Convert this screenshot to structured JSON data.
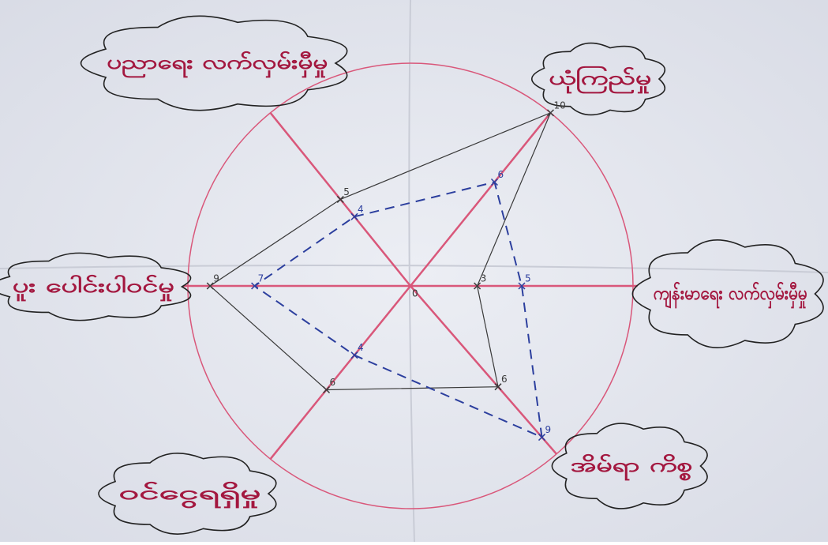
{
  "chart_data": {
    "type": "radar",
    "categories": [
      "ပညာရေး လက်လှမ်းမှီမှု",
      "ယုံကြည်မှု",
      "ကျန်းမာရေး လက်လှမ်းမှီမှု",
      "အိမ်ရာ ကိစ္စ",
      "ဝင်ငွေရရှိမှု",
      "ပူး ပေါင်းပါဝင်မှု"
    ],
    "rlim": [
      0,
      10
    ],
    "axis_color": "#d9577a",
    "series": [
      {
        "color": "#3a3a3a",
        "line_style": "solid",
        "values": [
          5,
          10,
          3,
          6,
          6,
          9
        ]
      },
      {
        "color": "#2c3f9e",
        "line_style": "dashed",
        "values": [
          4,
          6,
          5,
          9,
          4,
          7
        ]
      }
    ]
  }
}
